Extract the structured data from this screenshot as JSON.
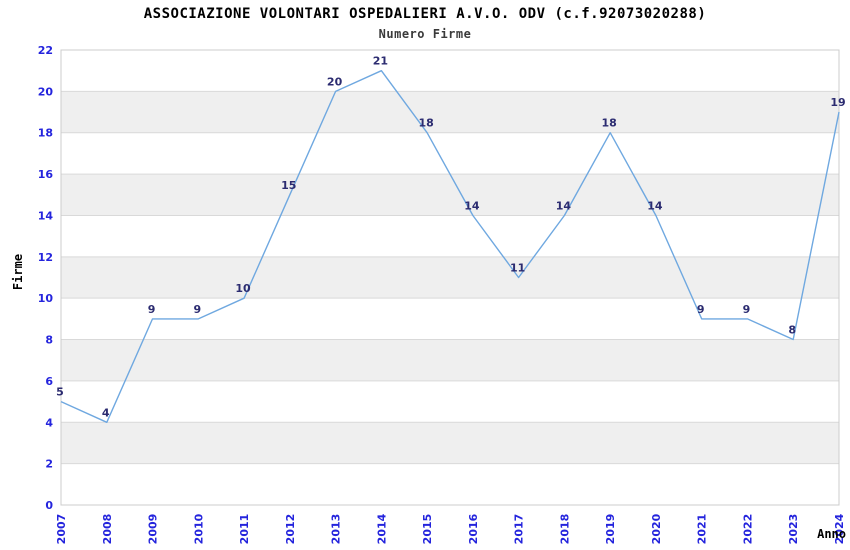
{
  "chart_data": {
    "type": "line",
    "title": "ASSOCIAZIONE VOLONTARI OSPEDALIERI A.V.O. ODV (c.f.92073020288)",
    "subtitle": "Numero Firme",
    "xlabel": "Anno",
    "ylabel": "Firme",
    "categories": [
      "2007",
      "2008",
      "2009",
      "2010",
      "2011",
      "2012",
      "2013",
      "2014",
      "2015",
      "2016",
      "2017",
      "2018",
      "2019",
      "2020",
      "2021",
      "2022",
      "2023",
      "2024"
    ],
    "values": [
      5,
      4,
      9,
      9,
      10,
      15,
      20,
      21,
      18,
      14,
      11,
      14,
      18,
      14,
      9,
      9,
      8,
      19
    ],
    "ylim": [
      0,
      22
    ],
    "ytick_step": 2,
    "grid": "horizontal-only",
    "legend_position": "none",
    "colors": {
      "line": "#6FA8E0",
      "data_label": "#2b2b70",
      "tick_label": "#2424dd",
      "band_gray": "#efefef",
      "band_white": "#ffffff",
      "gridline": "#d9d9d9",
      "plot_border": "#cccccc",
      "title_color": "#000000",
      "subtitle_color": "#3a3a3a",
      "axis_title_color": "#000000"
    }
  }
}
